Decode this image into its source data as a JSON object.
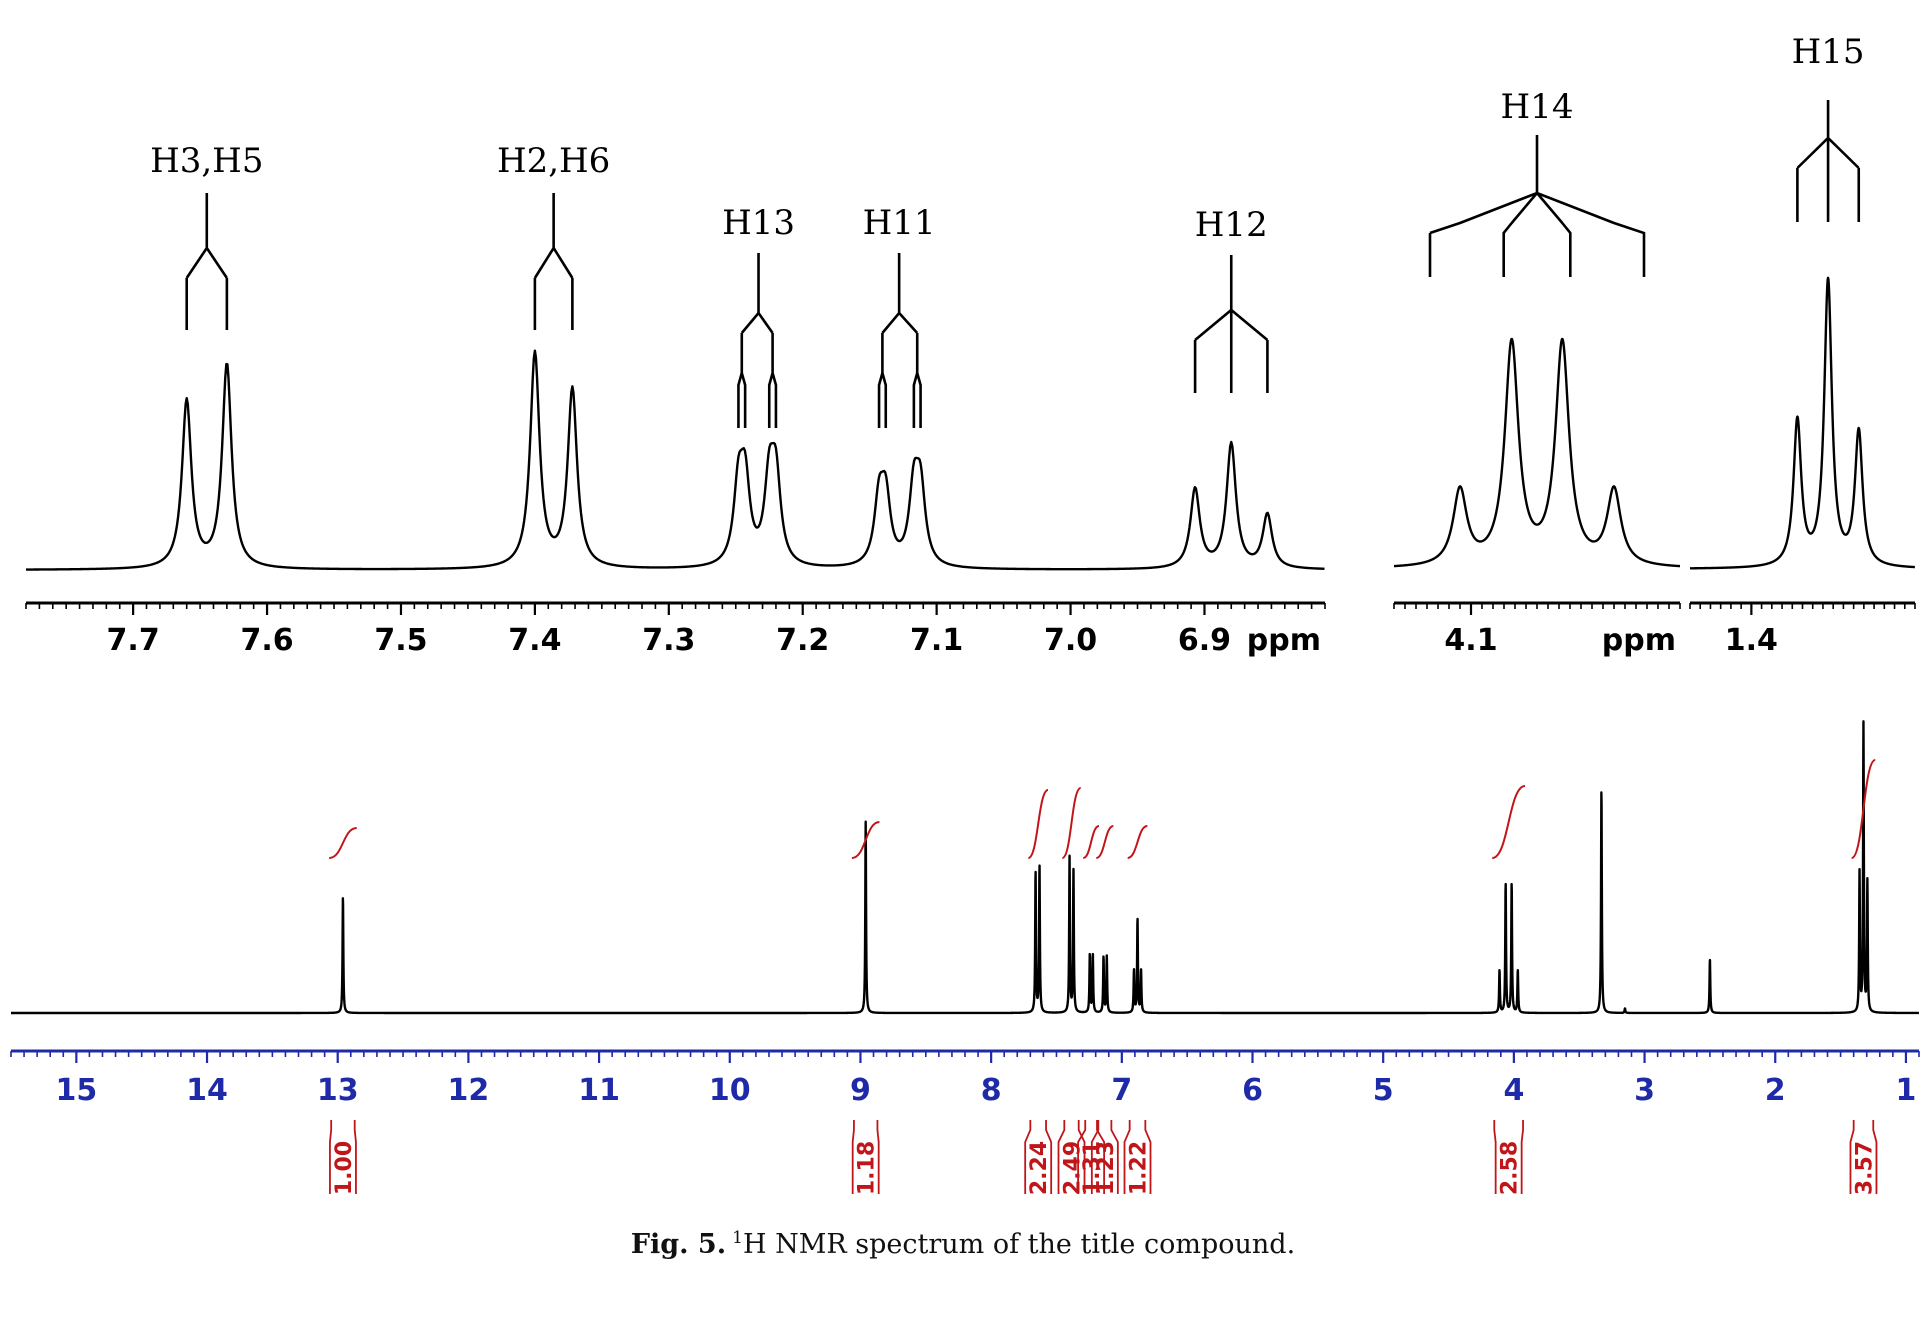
{
  "chart_data": [
    {
      "type": "line",
      "title": "",
      "xlabel": "ppm",
      "xlim": [
        7.78,
        6.81
      ],
      "x_ticks": [
        "7.7",
        "7.6",
        "7.5",
        "7.4",
        "7.3",
        "7.2",
        "7.1",
        "7.0",
        "6.9"
      ],
      "series": [
        {
          "multiplets": [
            {
              "label": "H3,H5",
              "center": 7.645,
              "lines": [
                7.66,
                7.63
              ],
              "heights": [
                0.78,
                0.95
              ]
            },
            {
              "label": "H2,H6",
              "center": 7.386,
              "lines": [
                7.4,
                7.372
              ],
              "heights": [
                1.0,
                0.83
              ]
            },
            {
              "label": "H13",
              "center": 7.233,
              "lines": [
                7.248,
                7.243,
                7.225,
                7.22
              ],
              "heights": [
                0.35,
                0.37,
                0.37,
                0.39
              ]
            },
            {
              "label": "H11",
              "center": 7.128,
              "lines": [
                7.143,
                7.138,
                7.117,
                7.112
              ],
              "heights": [
                0.29,
                0.3,
                0.34,
                0.34
              ]
            },
            {
              "label": "H12",
              "center": 6.88,
              "lines": [
                6.907,
                6.88,
                6.853
              ],
              "heights": [
                0.37,
                0.58,
                0.25
              ]
            }
          ]
        }
      ]
    },
    {
      "type": "line",
      "title": "",
      "xlabel": "ppm",
      "xlim": [
        4.17,
        3.91
      ],
      "x_ticks": [
        "4.1"
      ],
      "series": [
        {
          "multiplets": [
            {
              "label": "H14",
              "center": 4.04,
              "lines": [
                4.11,
                4.063,
                4.017,
                3.97
              ],
              "heights": [
                0.34,
                1.0,
                1.0,
                0.34
              ]
            }
          ]
        }
      ]
    },
    {
      "type": "line",
      "title": "",
      "xlabel": "",
      "xlim": [
        1.46,
        1.24
      ],
      "x_ticks": [
        "1.4"
      ],
      "series": [
        {
          "multiplets": [
            {
              "label": "H15",
              "center": 1.325,
              "lines": [
                1.355,
                1.325,
                1.295
              ],
              "heights": [
                0.51,
                1.0,
                0.47
              ]
            }
          ]
        }
      ]
    },
    {
      "type": "line",
      "title": "",
      "xlabel": "",
      "xlim": [
        15.5,
        0.9
      ],
      "x_ticks": [
        "15",
        "14",
        "13",
        "12",
        "11",
        "10",
        "9",
        "8",
        "7",
        "6",
        "5",
        "4",
        "3",
        "2",
        "1"
      ],
      "series": [
        {
          "peaks": [
            {
              "shift": 12.96,
              "height": 0.52
            },
            {
              "shift": 8.96,
              "height": 0.85
            },
            {
              "shift": 7.66,
              "height": 0.63
            },
            {
              "shift": 7.63,
              "height": 0.66
            },
            {
              "shift": 7.4,
              "height": 0.69
            },
            {
              "shift": 7.37,
              "height": 0.63
            },
            {
              "shift": 7.245,
              "height": 0.26
            },
            {
              "shift": 7.222,
              "height": 0.26
            },
            {
              "shift": 7.14,
              "height": 0.25
            },
            {
              "shift": 7.115,
              "height": 0.25
            },
            {
              "shift": 6.907,
              "height": 0.19
            },
            {
              "shift": 6.88,
              "height": 0.42
            },
            {
              "shift": 6.853,
              "height": 0.19
            },
            {
              "shift": 4.11,
              "height": 0.19
            },
            {
              "shift": 4.063,
              "height": 0.58
            },
            {
              "shift": 4.017,
              "height": 0.58
            },
            {
              "shift": 3.97,
              "height": 0.19
            },
            {
              "shift": 3.33,
              "height": 1.0
            },
            {
              "shift": 3.15,
              "height": 0.02
            },
            {
              "shift": 2.5,
              "height": 0.24
            },
            {
              "shift": 1.355,
              "height": 0.62
            },
            {
              "shift": 1.325,
              "height": 1.28
            },
            {
              "shift": 1.295,
              "height": 0.58
            }
          ]
        }
      ],
      "integrals": [
        {
          "value": "1.00",
          "from": 13.05,
          "to": 12.87
        },
        {
          "value": "1.18",
          "from": 9.05,
          "to": 8.87
        },
        {
          "value": "2.24",
          "from": 7.7,
          "to": 7.58
        },
        {
          "value": "2.49",
          "from": 7.44,
          "to": 7.33
        },
        {
          "value": "1.31",
          "from": 7.28,
          "to": 7.19
        },
        {
          "value": "1.23",
          "from": 7.18,
          "to": 7.08
        },
        {
          "value": "1.22",
          "from": 6.94,
          "to": 6.82
        }
      ],
      "integrals_2": [
        {
          "value": "2.58",
          "from": 4.15,
          "to": 3.93
        },
        {
          "value": "3.57",
          "from": 1.4,
          "to": 1.25
        }
      ]
    }
  ],
  "caption": {
    "label": "Fig. 5.",
    "superscript": "1",
    "text": "H NMR spectrum of the title compound."
  },
  "colors": {
    "axis_top": "#000000",
    "axis_bottom": "#1f2aa8",
    "integral": "#c0161a"
  }
}
